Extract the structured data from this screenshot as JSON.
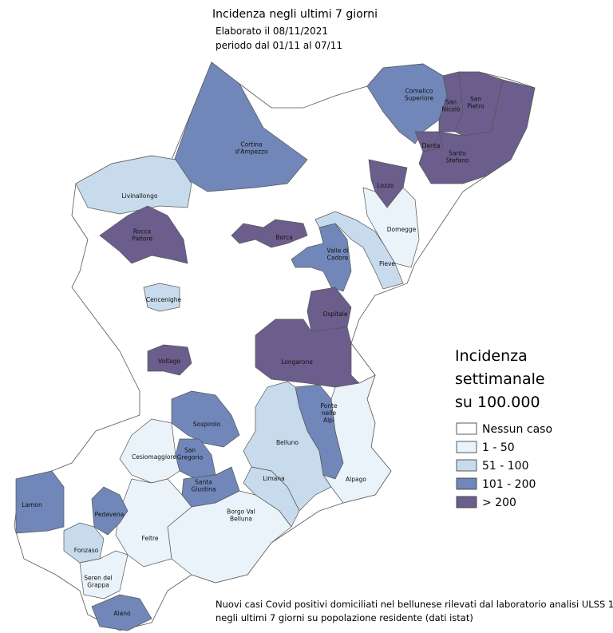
{
  "title": "Incidenza negli ultimi 7 giorni",
  "subtitle": [
    "Elaborato il 08/11/2021",
    "periodo  dal 01/11 al 07/11"
  ],
  "legend": {
    "title": [
      "Incidenza",
      "settimanale",
      "su 100.000"
    ],
    "items": [
      {
        "label": "Nessun caso",
        "color": "#ffffff"
      },
      {
        "label": "1 - 50",
        "color": "#e9f3f9"
      },
      {
        "label": "51 - 100",
        "color": "#c7dbec"
      },
      {
        "label": "101 - 200",
        "color": "#7187b9"
      },
      {
        "label": "> 200",
        "color": "#6b5e8d"
      }
    ]
  },
  "regions": [
    {
      "name": [
        "Comelico",
        "Superiore"
      ],
      "class": 3
    },
    {
      "name": [
        "San",
        "Nicolò"
      ],
      "class": 4
    },
    {
      "name": [
        "San",
        "Pietro"
      ],
      "class": 4
    },
    {
      "name": [
        "Danta"
      ],
      "class": 4
    },
    {
      "name": [
        "Santo",
        "Stefano"
      ],
      "class": 4
    },
    {
      "name": [
        "Cortina",
        "d'Ampezzo"
      ],
      "class": 3
    },
    {
      "name": [
        "Livinallongo"
      ],
      "class": 2
    },
    {
      "name": [
        "Lozzo"
      ],
      "class": 4
    },
    {
      "name": [
        "Domegge"
      ],
      "class": 1
    },
    {
      "name": [
        "Rocca",
        "Pietore"
      ],
      "class": 4
    },
    {
      "name": [
        "Borca"
      ],
      "class": 4
    },
    {
      "name": [
        "Valle di",
        "Cadore"
      ],
      "class": 3
    },
    {
      "name": [
        "Pieve"
      ],
      "class": 2
    },
    {
      "name": [
        "Cencenighe"
      ],
      "class": 2
    },
    {
      "name": [
        "Ospitale"
      ],
      "class": 4
    },
    {
      "name": [
        "Longarone"
      ],
      "class": 4
    },
    {
      "name": [
        "Voltago"
      ],
      "class": 4
    },
    {
      "name": [
        "Sospirolo"
      ],
      "class": 3
    },
    {
      "name": [
        "San",
        "Gregorio"
      ],
      "class": 3
    },
    {
      "name": [
        "Santa",
        "Giustina"
      ],
      "class": 3
    },
    {
      "name": [
        "Ponte",
        "nelle",
        "Alpi"
      ],
      "class": 3
    },
    {
      "name": [
        "Belluno"
      ],
      "class": 2
    },
    {
      "name": [
        "Limana"
      ],
      "class": 2
    },
    {
      "name": [
        "Alpago"
      ],
      "class": 1
    },
    {
      "name": [
        "Cesiomaggiore"
      ],
      "class": 1
    },
    {
      "name": [
        "Borgo Val",
        "Belluna"
      ],
      "class": 1
    },
    {
      "name": [
        "Feltre"
      ],
      "class": 1
    },
    {
      "name": [
        "Lamon"
      ],
      "class": 3
    },
    {
      "name": [
        "Pedavena"
      ],
      "class": 3
    },
    {
      "name": [
        "Fonzaso"
      ],
      "class": 2
    },
    {
      "name": [
        "Seren del",
        "Grappa"
      ],
      "class": 1
    },
    {
      "name": [
        "Alano"
      ],
      "class": 3
    }
  ],
  "footnote": [
    "Nuovi casi Covid positivi domiciliati nel bellunese rilevati dal laboratorio analisi ULSS 1",
    "negli ultimi 7 giorni su popolazione residente (dati istat)"
  ]
}
